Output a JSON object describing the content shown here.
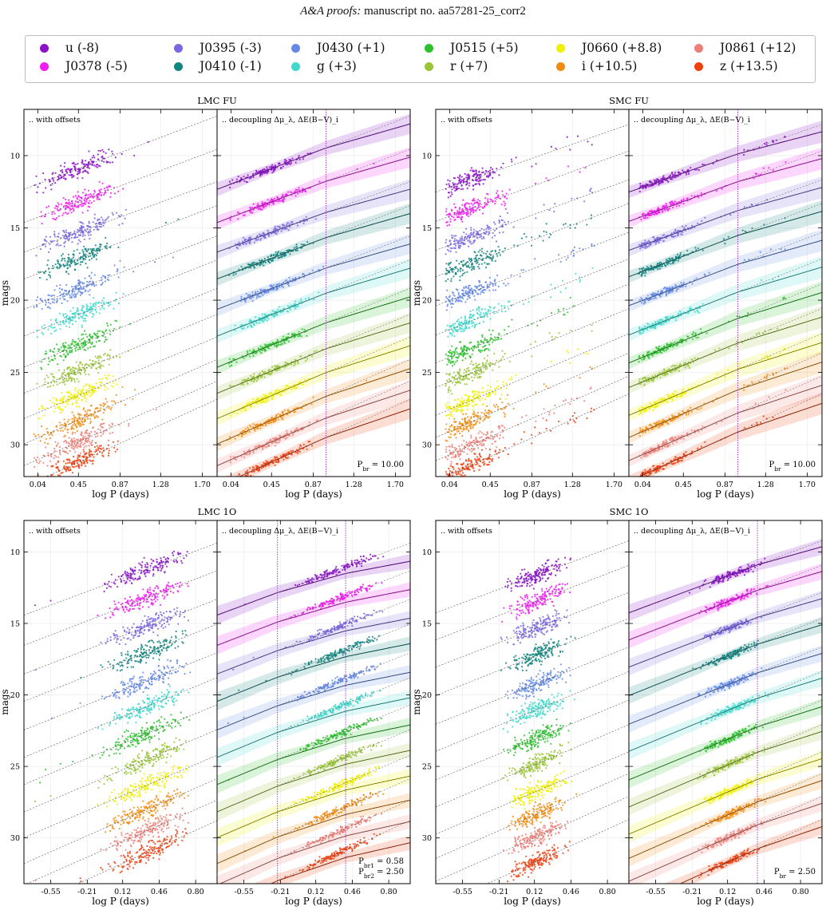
{
  "header": {
    "journal": "A&A proofs:",
    "manuscript": "manuscript no. aa57281-25_corr2"
  },
  "legend": {
    "placement": "top",
    "items": [
      {
        "label": "u (-8)",
        "color": "#8a12c8"
      },
      {
        "label": "J0378 (-5)",
        "color": "#f01cf0"
      },
      {
        "label": "J0395 (-3)",
        "color": "#7b68e0"
      },
      {
        "label": "J0410 (-1)",
        "color": "#138580"
      },
      {
        "label": "J0430 (+1)",
        "color": "#6489e6"
      },
      {
        "label": "g (+3)",
        "color": "#40d8cc"
      },
      {
        "label": "J0515 (+5)",
        "color": "#2ec12e"
      },
      {
        "label": "r (+7)",
        "color": "#9ac43a"
      },
      {
        "label": "J0660 (+8.8)",
        "color": "#f0f000"
      },
      {
        "label": "i (+10.5)",
        "color": "#f28c10"
      },
      {
        "label": "J0861 (+12)",
        "color": "#ec8078"
      },
      {
        "label": "z (+13.5)",
        "color": "#f04010"
      }
    ]
  },
  "chart_data": [
    {
      "type": "scatter",
      "title": "LMC FU",
      "ylabel": "mags",
      "xlabel": "log P (days)",
      "xticks": [
        "0.04",
        "0.45",
        "0.87",
        "1.28",
        "1.70"
      ],
      "xlim": [
        -0.1,
        1.85
      ],
      "ylim": [
        32.2,
        6.8
      ],
      "yticks": [
        10,
        15,
        20,
        25,
        30
      ],
      "grid": true,
      "left_panel_note": ".. with offsets",
      "right_panel_note": ".. decoupling Δμ_λ, ΔE(B−V)_i",
      "point_xrange": [
        0.0,
        1.5
      ],
      "point_density_peak": 0.45,
      "relations": [
        {
          "band": "u",
          "offset_mag": 10.9,
          "slope": -2.6
        },
        {
          "band": "J0378",
          "offset_mag": 13.2,
          "slope": -2.6
        },
        {
          "band": "J0395",
          "offset_mag": 15.3,
          "slope": -2.5
        },
        {
          "band": "J0410",
          "offset_mag": 17.1,
          "slope": -2.6
        },
        {
          "band": "J0430",
          "offset_mag": 19.2,
          "slope": -2.6
        },
        {
          "band": "g",
          "offset_mag": 21.0,
          "slope": -2.7
        },
        {
          "band": "J0515",
          "offset_mag": 23.1,
          "slope": -2.8
        },
        {
          "band": "r",
          "offset_mag": 24.9,
          "slope": -2.8
        },
        {
          "band": "J0660",
          "offset_mag": 26.6,
          "slope": -2.9
        },
        {
          "band": "i",
          "offset_mag": 28.3,
          "slope": -3.0
        },
        {
          "band": "J0861",
          "offset_mag": 29.8,
          "slope": -3.0
        },
        {
          "band": "z",
          "offset_mag": 31.2,
          "slope": -3.1
        }
      ],
      "breaks_logP": [
        1.0
      ],
      "break_labels": [
        "P_br = 10.00"
      ],
      "break_label_parts": [
        {
          "main": "P",
          "sub": "br",
          "rest": " = 10.00"
        }
      ]
    },
    {
      "type": "scatter",
      "title": "SMC FU",
      "ylabel": "mags",
      "xlabel": "log P (days)",
      "xticks": [
        "0.04",
        "0.45",
        "0.87",
        "1.28",
        "1.70"
      ],
      "xlim": [
        -0.1,
        1.85
      ],
      "ylim": [
        32.2,
        6.8
      ],
      "yticks": [
        10,
        15,
        20,
        25,
        30
      ],
      "grid": true,
      "left_panel_note": ".. with offsets",
      "right_panel_note": ".. decoupling Δμ_λ, ΔE(B−V)_i",
      "point_xrange": [
        0.0,
        1.5
      ],
      "point_density_peak": 0.2,
      "relations": [
        {
          "band": "u",
          "offset_mag": 11.8,
          "slope": -2.4
        },
        {
          "band": "J0378",
          "offset_mag": 13.8,
          "slope": -2.5
        },
        {
          "band": "J0395",
          "offset_mag": 15.8,
          "slope": -2.5
        },
        {
          "band": "J0410",
          "offset_mag": 17.6,
          "slope": -2.6
        },
        {
          "band": "J0430",
          "offset_mag": 19.6,
          "slope": -2.6
        },
        {
          "band": "g",
          "offset_mag": 21.6,
          "slope": -2.7
        },
        {
          "band": "J0515",
          "offset_mag": 23.5,
          "slope": -2.8
        },
        {
          "band": "r",
          "offset_mag": 25.2,
          "slope": -2.8
        },
        {
          "band": "J0660",
          "offset_mag": 27.1,
          "slope": -2.9
        },
        {
          "band": "i",
          "offset_mag": 28.6,
          "slope": -3.0
        },
        {
          "band": "J0861",
          "offset_mag": 30.2,
          "slope": -3.0
        },
        {
          "band": "z",
          "offset_mag": 31.6,
          "slope": -3.1
        }
      ],
      "breaks_logP": [
        1.0
      ],
      "break_labels": [
        "P_br = 10.00"
      ],
      "break_label_parts": [
        {
          "main": "P",
          "sub": "br",
          "rest": " = 10.00"
        }
      ]
    },
    {
      "type": "scatter",
      "title": "LMC 1O",
      "ylabel": "mags",
      "xlabel": "log P (days)",
      "xticks": [
        "-0.55",
        "-0.21",
        "0.12",
        "0.46",
        "0.80"
      ],
      "xlim": [
        -0.8,
        1.0
      ],
      "ylim": [
        33.2,
        7.8
      ],
      "yticks": [
        10,
        15,
        20,
        25,
        30
      ],
      "grid": true,
      "left_panel_note": ".. with offsets",
      "right_panel_note": ".. decoupling Δμ_λ, ΔE(B−V)_i",
      "point_xrange": [
        -0.7,
        0.75
      ],
      "point_density_peak": 0.35,
      "relations": [
        {
          "band": "u",
          "offset_mag": 11.2,
          "slope": -2.8
        },
        {
          "band": "J0378",
          "offset_mag": 13.2,
          "slope": -2.9
        },
        {
          "band": "J0395",
          "offset_mag": 15.2,
          "slope": -2.9
        },
        {
          "band": "J0410",
          "offset_mag": 17.0,
          "slope": -3.0
        },
        {
          "band": "J0430",
          "offset_mag": 19.0,
          "slope": -3.0
        },
        {
          "band": "g",
          "offset_mag": 20.8,
          "slope": -3.1
        },
        {
          "band": "J0515",
          "offset_mag": 22.7,
          "slope": -3.1
        },
        {
          "band": "r",
          "offset_mag": 24.5,
          "slope": -3.2
        },
        {
          "band": "J0660",
          "offset_mag": 26.3,
          "slope": -3.2
        },
        {
          "band": "i",
          "offset_mag": 28.0,
          "slope": -3.3
        },
        {
          "band": "J0861",
          "offset_mag": 29.5,
          "slope": -3.3
        },
        {
          "band": "z",
          "offset_mag": 31.0,
          "slope": -3.4
        }
      ],
      "breaks_logP": [
        -0.237,
        0.398
      ],
      "break_labels": [
        "P_br1 = 0.58",
        "P_br2 = 2.50"
      ],
      "break_label_parts": [
        {
          "main": "P",
          "sub": "br1",
          "rest": " = 0.58"
        },
        {
          "main": "P",
          "sub": "br2",
          "rest": " = 2.50"
        }
      ]
    },
    {
      "type": "scatter",
      "title": "SMC 1O",
      "ylabel": "mags",
      "xlabel": "log P (days)",
      "xticks": [
        "-0.55",
        "-0.21",
        "0.12",
        "0.46",
        "0.80"
      ],
      "xlim": [
        -0.8,
        1.0
      ],
      "ylim": [
        33.2,
        7.8
      ],
      "yticks": [
        10,
        15,
        20,
        25,
        30
      ],
      "grid": true,
      "left_panel_note": ".. with offsets",
      "right_panel_note": ".. decoupling Δμ_λ, ΔE(B−V)_i",
      "point_xrange": [
        -0.4,
        0.6
      ],
      "point_density_peak": 0.15,
      "relations": [
        {
          "band": "u",
          "offset_mag": 11.6,
          "slope": -2.8
        },
        {
          "band": "J0378",
          "offset_mag": 13.4,
          "slope": -2.9
        },
        {
          "band": "J0395",
          "offset_mag": 15.3,
          "slope": -2.9
        },
        {
          "band": "J0410",
          "offset_mag": 17.2,
          "slope": -3.0
        },
        {
          "band": "J0430",
          "offset_mag": 19.2,
          "slope": -3.0
        },
        {
          "band": "g",
          "offset_mag": 21.0,
          "slope": -3.1
        },
        {
          "band": "J0515",
          "offset_mag": 23.0,
          "slope": -3.1
        },
        {
          "band": "r",
          "offset_mag": 24.8,
          "slope": -3.2
        },
        {
          "band": "J0660",
          "offset_mag": 26.7,
          "slope": -3.2
        },
        {
          "band": "i",
          "offset_mag": 28.3,
          "slope": -3.3
        },
        {
          "band": "J0861",
          "offset_mag": 29.9,
          "slope": -3.3
        },
        {
          "band": "z",
          "offset_mag": 31.6,
          "slope": -3.4
        }
      ],
      "breaks_logP": [
        0.398
      ],
      "break_labels": [
        "P_br = 2.50"
      ],
      "break_label_parts": [
        {
          "main": "P",
          "sub": "br",
          "rest": " = 2.50"
        }
      ]
    }
  ]
}
